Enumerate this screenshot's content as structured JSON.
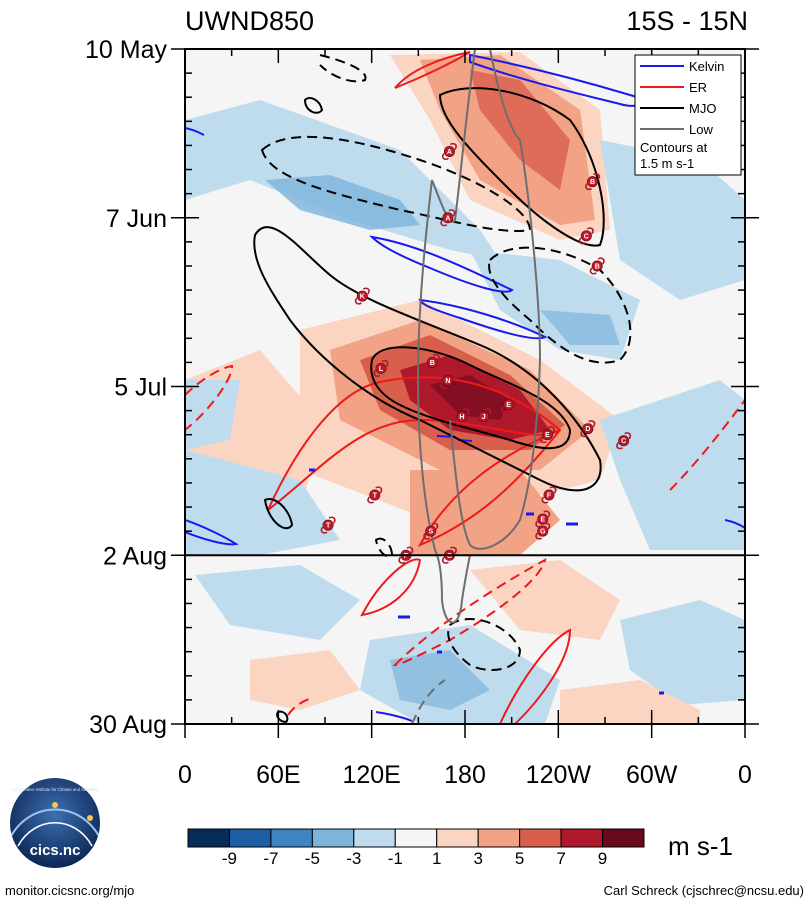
{
  "chart_data": {
    "type": "heatmap",
    "variant": "hovmoller",
    "title_left": "UWND850",
    "title_right": "15S - 15N",
    "xlabel": "",
    "ylabel": "",
    "x_tick_labels": [
      "0",
      "60E",
      "120E",
      "180",
      "120W",
      "60W",
      "0"
    ],
    "x_range_deg_east": [
      0,
      360
    ],
    "y_tick_labels": [
      "10 May",
      "7 Jun",
      "5 Jul",
      "2 Aug",
      "30 Aug"
    ],
    "y_range_days": [
      0,
      112
    ],
    "observed_through_day": 84,
    "colorbar": {
      "ticks": [
        "-9",
        "-7",
        "-5",
        "-3",
        "-1",
        "1",
        "3",
        "5",
        "7",
        "9"
      ],
      "units": "m s-1",
      "colors": [
        "#082c5a",
        "#1c5da3",
        "#3d85c0",
        "#7db4db",
        "#bfdcee",
        "#f5f5f5",
        "#fbd4c2",
        "#f2a285",
        "#d95f4d",
        "#b0182b",
        "#680a1c"
      ]
    },
    "legend": [
      {
        "label": "Kelvin",
        "color": "#1a1aee"
      },
      {
        "label": "ER",
        "color": "#ee1a1a"
      },
      {
        "label": "MJO",
        "color": "#000000"
      },
      {
        "label": "Low",
        "color": "#6e6e6e"
      }
    ],
    "legend_note_line1": "Contours at",
    "legend_note_line2": "1.5 m s-1",
    "storms": [
      {
        "letter": "A",
        "lon": 170,
        "day": 17
      },
      {
        "letter": "B",
        "lon": 262,
        "day": 22
      },
      {
        "letter": "C",
        "lon": 258,
        "day": 31
      },
      {
        "letter": "B",
        "lon": 265,
        "day": 36
      },
      {
        "letter": "A",
        "lon": 169,
        "day": 28
      },
      {
        "letter": "K",
        "lon": 114,
        "day": 41
      },
      {
        "letter": "B",
        "lon": 159,
        "day": 52
      },
      {
        "letter": "L",
        "lon": 126,
        "day": 53
      },
      {
        "letter": "N",
        "lon": 169,
        "day": 55
      },
      {
        "letter": "E",
        "lon": 208,
        "day": 59
      },
      {
        "letter": "H",
        "lon": 178,
        "day": 61
      },
      {
        "letter": "J",
        "lon": 192,
        "day": 61
      },
      {
        "letter": "D",
        "lon": 259,
        "day": 63
      },
      {
        "letter": "E",
        "lon": 233,
        "day": 64
      },
      {
        "letter": "C",
        "lon": 282,
        "day": 65
      },
      {
        "letter": "T",
        "lon": 122,
        "day": 74
      },
      {
        "letter": "F",
        "lon": 234,
        "day": 74
      },
      {
        "letter": "T",
        "lon": 92,
        "day": 79
      },
      {
        "letter": "E",
        "lon": 230,
        "day": 78
      },
      {
        "letter": "G",
        "lon": 230,
        "day": 80
      },
      {
        "letter": "S",
        "lon": 158,
        "day": 80
      },
      {
        "letter": "F",
        "lon": 142,
        "day": 84
      },
      {
        "letter": "O",
        "lon": 170,
        "day": 84
      }
    ]
  },
  "footer": {
    "logo_text": "cics.nc",
    "logo_ring_text": "Cooperative Institute for Climate and Satellites",
    "left": "monitor.cicsnc.org/mjo",
    "right": "Carl Schreck (cjschrec@ncsu.edu)"
  }
}
